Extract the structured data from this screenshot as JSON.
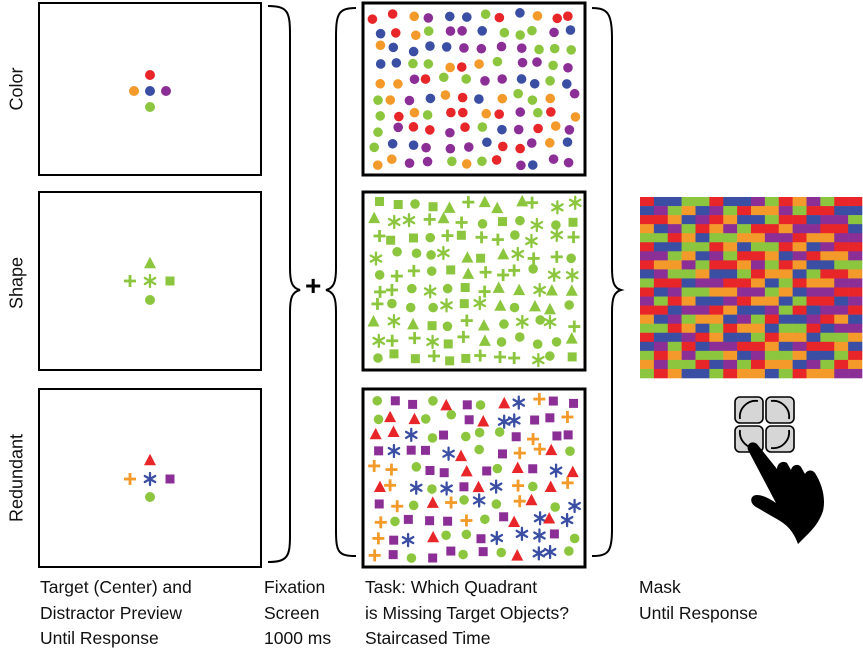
{
  "rows": {
    "color": "Color",
    "shape": "Shape",
    "redundant": "Redundant"
  },
  "fixation_symbol": "+",
  "captions": {
    "preview": [
      "Target (Center) and",
      "Distractor Preview",
      "Until Response"
    ],
    "fixation": [
      "Fixation",
      "Screen",
      "1000 ms"
    ],
    "task": [
      "Task: Which Quadrant",
      "is Missing Target Objects?",
      "Staircased Time"
    ],
    "mask": [
      "Mask",
      "Until Response"
    ]
  },
  "colors": {
    "red": "#e8262a",
    "orange": "#f39a2b",
    "blue": "#3a4ea3",
    "purple": "#8b2f96",
    "green": "#8cc63f",
    "frame": "#000000"
  },
  "icons": [
    "hand-pointer-icon",
    "quadrant-keypad-icon"
  ]
}
